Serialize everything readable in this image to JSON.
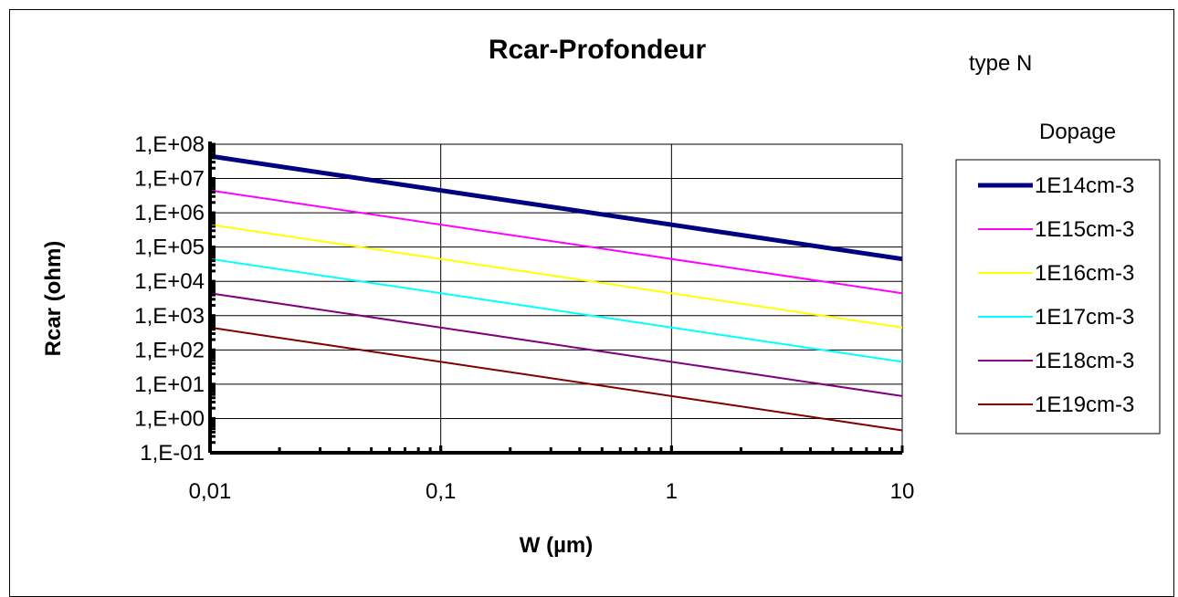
{
  "chart_data": {
    "type": "line",
    "title": "Rcar-Profondeur",
    "annotations": [
      "type N",
      "Dopage"
    ],
    "xlabel": "W (µm)",
    "ylabel": "Rcar (ohm)",
    "x_scale": "log",
    "y_scale": "log",
    "xlim": [
      0.01,
      10
    ],
    "ylim": [
      0.1,
      100000000
    ],
    "x_ticks": [
      {
        "value": 0.01,
        "label": "0,01"
      },
      {
        "value": 0.1,
        "label": "0,1"
      },
      {
        "value": 1,
        "label": "1"
      },
      {
        "value": 10,
        "label": "10"
      }
    ],
    "y_ticks": [
      {
        "value": 0.1,
        "label": "1,E-01"
      },
      {
        "value": 1,
        "label": "1,E+00"
      },
      {
        "value": 10,
        "label": "1,E+01"
      },
      {
        "value": 100,
        "label": "1,E+02"
      },
      {
        "value": 1000,
        "label": "1,E+03"
      },
      {
        "value": 10000,
        "label": "1,E+04"
      },
      {
        "value": 100000,
        "label": "1,E+05"
      },
      {
        "value": 1000000,
        "label": "1,E+06"
      },
      {
        "value": 10000000,
        "label": "1,E+07"
      },
      {
        "value": 100000000,
        "label": "1,E+08"
      }
    ],
    "grid": true,
    "legend_position": "right",
    "series": [
      {
        "name": "1E14cm-3",
        "color": "#000080",
        "width": 5,
        "x": [
          0.01,
          10
        ],
        "y": [
          45000000,
          45000
        ]
      },
      {
        "name": "1E15cm-3",
        "color": "#ff00ff",
        "width": 2,
        "x": [
          0.01,
          10
        ],
        "y": [
          4500000,
          4500
        ]
      },
      {
        "name": "1E16cm-3",
        "color": "#ffff00",
        "width": 2,
        "x": [
          0.01,
          10
        ],
        "y": [
          450000,
          450
        ]
      },
      {
        "name": "1E17cm-3",
        "color": "#00ffff",
        "width": 2,
        "x": [
          0.01,
          10
        ],
        "y": [
          45000,
          45
        ]
      },
      {
        "name": "1E18cm-3",
        "color": "#800080",
        "width": 2,
        "x": [
          0.01,
          10
        ],
        "y": [
          4500,
          4.5
        ]
      },
      {
        "name": "1E19cm-3",
        "color": "#800000",
        "width": 2,
        "x": [
          0.01,
          10
        ],
        "y": [
          450,
          0.45
        ]
      }
    ]
  }
}
